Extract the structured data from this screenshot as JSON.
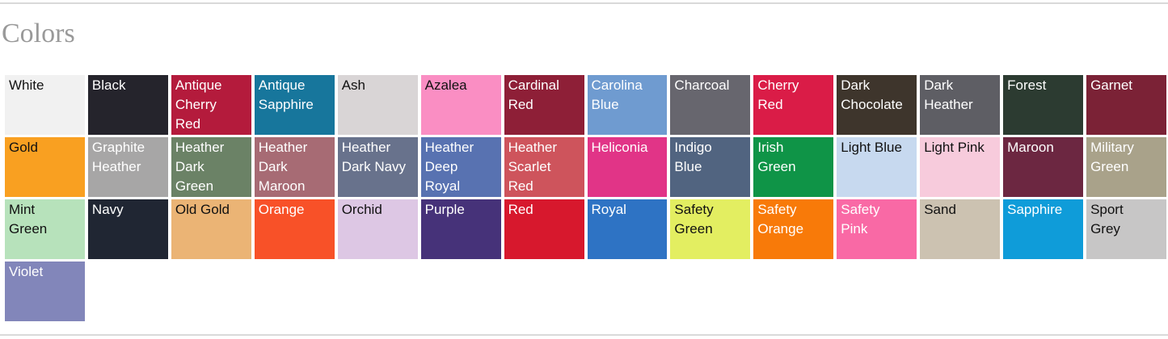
{
  "section": {
    "title": "Colors"
  },
  "swatches": [
    {
      "name": "White",
      "color": "#f1f1f1",
      "text_color": "#111111"
    },
    {
      "name": "Black",
      "color": "#25242c",
      "text_color": "#ffffff"
    },
    {
      "name": "Antique Cherry Red",
      "color": "#b41b3c",
      "text_color": "#ffffff"
    },
    {
      "name": "Antique Sapphire",
      "color": "#17769c",
      "text_color": "#ffffff"
    },
    {
      "name": "Ash",
      "color": "#d9d5d6",
      "text_color": "#111111"
    },
    {
      "name": "Azalea",
      "color": "#fa8ec3",
      "text_color": "#111111"
    },
    {
      "name": "Cardinal Red",
      "color": "#8e1f37",
      "text_color": "#ffffff"
    },
    {
      "name": "Carolina Blue",
      "color": "#6f9bd0",
      "text_color": "#ffffff"
    },
    {
      "name": "Charcoal",
      "color": "#67666e",
      "text_color": "#ffffff"
    },
    {
      "name": "Cherry Red",
      "color": "#da1c47",
      "text_color": "#ffffff"
    },
    {
      "name": "Dark Chocolate",
      "color": "#3e352c",
      "text_color": "#ffffff"
    },
    {
      "name": "Dark Heather",
      "color": "#5e5e64",
      "text_color": "#ffffff"
    },
    {
      "name": "Forest",
      "color": "#2c3b31",
      "text_color": "#ffffff"
    },
    {
      "name": "Garnet",
      "color": "#7b2236",
      "text_color": "#ffffff"
    },
    {
      "name": "Gold",
      "color": "#f9a021",
      "text_color": "#111111"
    },
    {
      "name": "Graphite Heather",
      "color": "#a7a6a6",
      "text_color": "#ffffff"
    },
    {
      "name": "Heather Dark Green",
      "color": "#6b8266",
      "text_color": "#ffffff"
    },
    {
      "name": "Heather Dark Maroon",
      "color": "#a76b74",
      "text_color": "#ffffff"
    },
    {
      "name": "Heather Dark Navy",
      "color": "#68728c",
      "text_color": "#ffffff"
    },
    {
      "name": "Heather Deep Royal",
      "color": "#5872b1",
      "text_color": "#ffffff"
    },
    {
      "name": "Heather Scarlet Red",
      "color": "#ce545c",
      "text_color": "#ffffff"
    },
    {
      "name": "Heliconia",
      "color": "#e13487",
      "text_color": "#ffffff"
    },
    {
      "name": "Indigo Blue",
      "color": "#516480",
      "text_color": "#ffffff"
    },
    {
      "name": "Irish Green",
      "color": "#0f9447",
      "text_color": "#ffffff"
    },
    {
      "name": "Light Blue",
      "color": "#c7d9ef",
      "text_color": "#111111"
    },
    {
      "name": "Light Pink",
      "color": "#f7cbdc",
      "text_color": "#111111"
    },
    {
      "name": "Maroon",
      "color": "#6c2741",
      "text_color": "#ffffff"
    },
    {
      "name": "Military Green",
      "color": "#a9a28a",
      "text_color": "#ffffff"
    },
    {
      "name": "Mint Green",
      "color": "#b7e2bb",
      "text_color": "#111111"
    },
    {
      "name": "Navy",
      "color": "#202633",
      "text_color": "#ffffff"
    },
    {
      "name": "Old Gold",
      "color": "#ebb475",
      "text_color": "#111111"
    },
    {
      "name": "Orange",
      "color": "#f85128",
      "text_color": "#ffffff"
    },
    {
      "name": "Orchid",
      "color": "#ddc7e4",
      "text_color": "#111111"
    },
    {
      "name": "Purple",
      "color": "#463279",
      "text_color": "#ffffff"
    },
    {
      "name": "Red",
      "color": "#d7182d",
      "text_color": "#ffffff"
    },
    {
      "name": "Royal",
      "color": "#2e73c4",
      "text_color": "#ffffff"
    },
    {
      "name": "Safety Green",
      "color": "#e3ee61",
      "text_color": "#111111"
    },
    {
      "name": "Safety Orange",
      "color": "#f87a09",
      "text_color": "#ffffff"
    },
    {
      "name": "Safety Pink",
      "color": "#f969a5",
      "text_color": "#ffffff"
    },
    {
      "name": "Sand",
      "color": "#ccc2b1",
      "text_color": "#111111"
    },
    {
      "name": "Sapphire",
      "color": "#0f9cd9",
      "text_color": "#ffffff"
    },
    {
      "name": "Sport Grey",
      "color": "#c7c6c6",
      "text_color": "#111111"
    },
    {
      "name": "Violet",
      "color": "#8286ba",
      "text_color": "#ffffff"
    }
  ]
}
